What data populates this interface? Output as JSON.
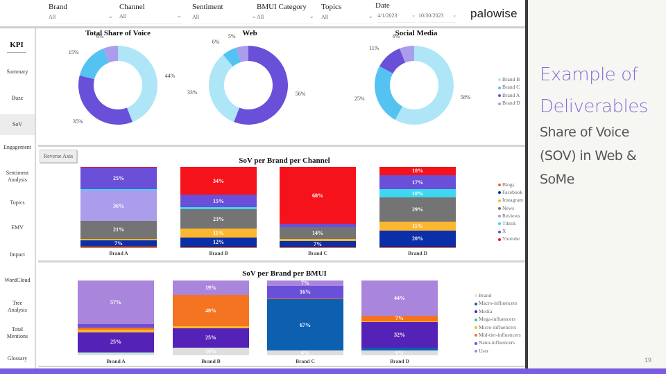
{
  "filters": [
    {
      "label": "Brand",
      "value": "All"
    },
    {
      "label": "Channel",
      "value": "All"
    },
    {
      "label": "Sentiment",
      "value": "All"
    },
    {
      "label": "BMUI Category",
      "value": "All"
    },
    {
      "label": "Topics",
      "value": "All"
    }
  ],
  "date_filter": {
    "label": "Date",
    "start": "4/1/2023",
    "end": "10/30/2023"
  },
  "logo": "palowise",
  "sidebar": {
    "header": "KPI",
    "items": [
      {
        "label": "Summary"
      },
      {
        "label": "Buzz"
      },
      {
        "label": "SoV",
        "active": true
      },
      {
        "label": "Engagement"
      },
      {
        "label": "Sentiment Analysis"
      },
      {
        "label": "Topics"
      },
      {
        "label": "EMV"
      },
      {
        "label": "Impact"
      },
      {
        "label": "WordCloud"
      },
      {
        "label": "Tree Analysis"
      },
      {
        "label": "Total Mentions"
      },
      {
        "label": "Glossary"
      }
    ]
  },
  "reverse_axis_label": "Reverse Axis",
  "brand_colors": {
    "Brand B": "#aee6f8",
    "Brand C": "#55c3f2",
    "Brand A": "#6a4fd9",
    "Brand D": "#ab9cec"
  },
  "chart_data": [
    {
      "type": "pie",
      "title": "Total Share of Voice",
      "categories": [
        "Brand B",
        "Brand A",
        "Brand C",
        "Brand D"
      ],
      "values": [
        44,
        35,
        15,
        6
      ],
      "labels": [
        "44%",
        "35%",
        "15%",
        "6%"
      ]
    },
    {
      "type": "pie",
      "title": "Web",
      "categories": [
        "Brand A",
        "Brand B",
        "Brand C",
        "Brand D"
      ],
      "values": [
        56,
        33,
        6,
        5
      ],
      "labels": [
        "56%",
        "33%",
        "6%",
        "5%"
      ]
    },
    {
      "type": "pie",
      "title": "Social Media",
      "categories": [
        "Brand B",
        "Brand C",
        "Brand A",
        "Brand D"
      ],
      "values": [
        58,
        25,
        11,
        6
      ],
      "labels": [
        "58%",
        "25%",
        "11%",
        "6%"
      ],
      "legend": [
        "Brand B",
        "Brand C",
        "Brand A",
        "Brand D"
      ],
      "legend_position": "right"
    },
    {
      "type": "bar",
      "stacked": true,
      "title": "SoV per Brand per Channel",
      "categories": [
        "Brand A",
        "Brand B",
        "Brand C",
        "Brand D"
      ],
      "series": [
        {
          "name": "Blogs",
          "color": "#f26b2a",
          "values": [
            2,
            1,
            1,
            1
          ]
        },
        {
          "name": "Facebook",
          "color": "#0a2fa8",
          "values": [
            7,
            12,
            7,
            20
          ]
        },
        {
          "name": "Instagram",
          "color": "#fbb730",
          "values": [
            2,
            11,
            3,
            11
          ]
        },
        {
          "name": "News",
          "color": "#747474",
          "values": [
            21,
            23,
            14,
            29
          ]
        },
        {
          "name": "Reviews",
          "color": "#ab9cec",
          "values": [
            36,
            0,
            0,
            0
          ]
        },
        {
          "name": "Tiktok",
          "color": "#3fd6f0",
          "values": [
            2,
            3,
            0,
            10
          ]
        },
        {
          "name": "X",
          "color": "#6a4fd9",
          "values": [
            25,
            15,
            4,
            17
          ]
        },
        {
          "name": "Youtube",
          "color": "#f5121a",
          "values": [
            1,
            34,
            68,
            10
          ]
        }
      ],
      "segment_labels": {
        "Brand A": {
          "Facebook": "7%",
          "News": "21%",
          "Reviews": "36%",
          "X": "25%"
        },
        "Brand B": {
          "Facebook": "12%",
          "Instagram": "11%",
          "News": "23%",
          "X": "15%",
          "Youtube": "34%"
        },
        "Brand C": {
          "Facebook": "7%",
          "News": "14%",
          "Youtube": "68%"
        },
        "Brand D": {
          "Facebook": "20%",
          "Instagram": "11%",
          "News": "29%",
          "Tiktok": "10%",
          "X": "17%",
          "Youtube": "10%"
        }
      },
      "legend_position": "right",
      "ylim": [
        0,
        100
      ]
    },
    {
      "type": "bar",
      "stacked": true,
      "title": "SoV per Brand per BMUI",
      "categories": [
        "Brand A",
        "Brand B",
        "Brand C",
        "Brand D"
      ],
      "series": [
        {
          "name": "Brand",
          "color": "#dedede",
          "values": [
            4,
            10,
            6,
            6
          ]
        },
        {
          "name": "Macro-influencers",
          "color": "#0d5fb0",
          "values": [
            1,
            0,
            67,
            4
          ]
        },
        {
          "name": "Media",
          "color": "#5522b8",
          "values": [
            25,
            25,
            0,
            32
          ]
        },
        {
          "name": "Mega-influencers",
          "color": "#2ec4a0",
          "values": [
            0,
            0,
            0,
            0
          ]
        },
        {
          "name": "Micro-influencers",
          "color": "#fbb730",
          "values": [
            4,
            3,
            0,
            1
          ]
        },
        {
          "name": "Mid-tier-influencers",
          "color": "#f47421",
          "values": [
            2,
            40,
            1,
            7
          ]
        },
        {
          "name": "Nano-influencers",
          "color": "#6a4fd9",
          "values": [
            5,
            0,
            16,
            0
          ]
        },
        {
          "name": "User",
          "color": "#a985dc",
          "values": [
            57,
            19,
            7,
            44
          ]
        }
      ],
      "segment_labels": {
        "Brand A": {
          "Media": "25%",
          "User": "57%"
        },
        "Brand B": {
          "Brand": "10%",
          "Media": "25%",
          "Mid-tier-influencers": "40%",
          "User": "19%"
        },
        "Brand C": {
          "Brand": "6%",
          "Macro-influencers": "67%",
          "Nano-influencers": "16%",
          "User": "7%"
        },
        "Brand D": {
          "Brand": "6%",
          "Media": "32%",
          "Mid-tier-influencers": "7%",
          "User": "44%"
        }
      },
      "legend_position": "right",
      "ylim": [
        0,
        100
      ]
    }
  ],
  "slide": {
    "heading_line1": "Example of",
    "heading_line2": "Deliverables",
    "subheading": "Share of Voice (SOV) in Web & SoMe",
    "page_number": "19"
  }
}
